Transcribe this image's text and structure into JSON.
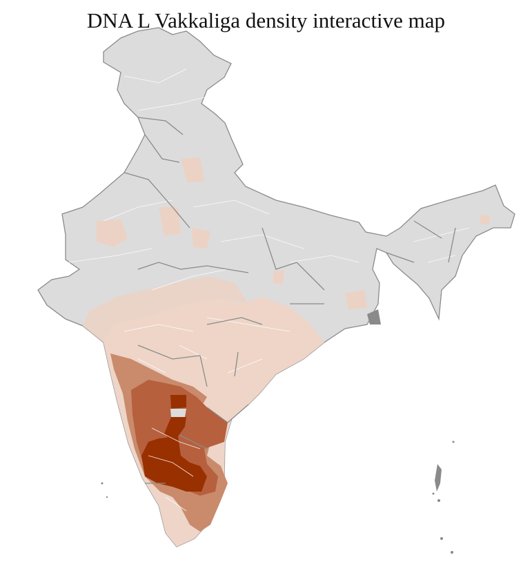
{
  "title": "DNA L Vakkaliga density interactive map",
  "map": {
    "region": "India",
    "unit": "district",
    "colors": {
      "no_data": "#dcdcdc",
      "very_low": "#f0dcd0",
      "low": "#e6c3b2",
      "medium": "#c98b6c",
      "high": "#b6603e",
      "very_high": "#993000",
      "border": "#8a8a8a"
    },
    "highest_density_area": "Karnataka (southern)"
  }
}
